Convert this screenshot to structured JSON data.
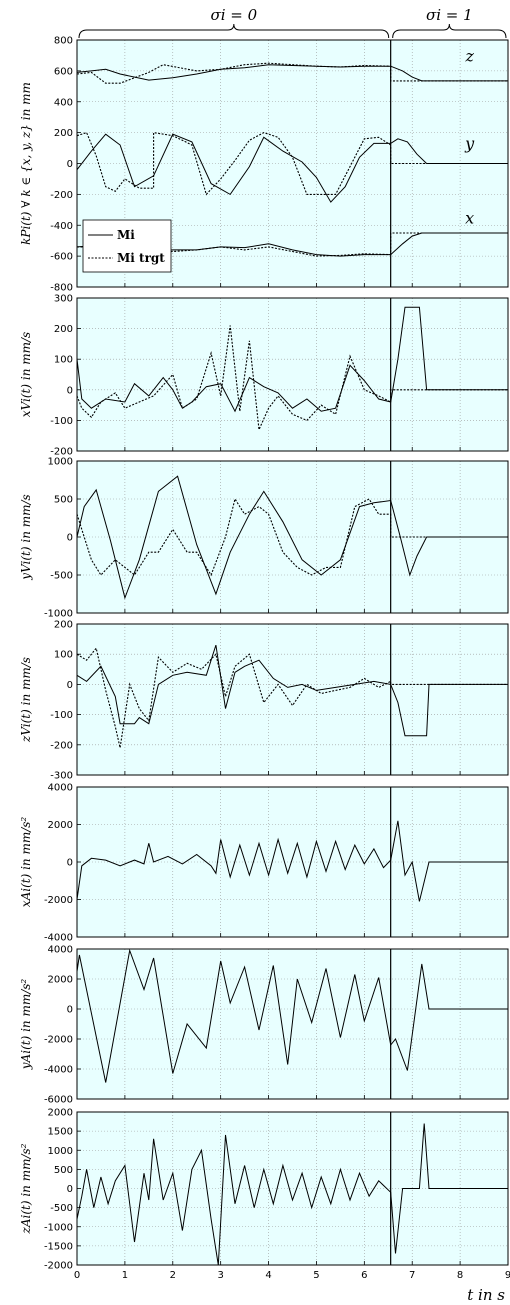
{
  "header": {
    "left_label": "σi = 0",
    "right_label": "σi = 1"
  },
  "xaxis": {
    "label": "t  in s",
    "ticks": [
      "0",
      "1",
      "2",
      "3",
      "4",
      "5",
      "6",
      "7",
      "8",
      "9"
    ]
  },
  "switch_time": 6.55,
  "colors": {
    "background": "#e8ffff",
    "grid": "#9a9a9a",
    "line": "#000000"
  },
  "chart_data": [
    {
      "type": "line",
      "ylabel": "kPi(t) ∀ k ∈ {x, y, z} in mm",
      "ylim": [
        -800,
        800
      ],
      "yticks": [
        -800,
        -600,
        -400,
        -200,
        0,
        200,
        400,
        600,
        800
      ],
      "xlim": [
        0,
        9
      ],
      "annotations": [
        {
          "text": "z",
          "x": 8.2,
          "y": 660
        },
        {
          "text": "y",
          "x": 8.2,
          "y": 95
        },
        {
          "text": "x",
          "x": 8.2,
          "y": -390
        }
      ],
      "legend": {
        "placement": "left",
        "entries": [
          {
            "label": "Mi",
            "style": "solid"
          },
          {
            "label": "Mi trgt",
            "style": "dotted"
          }
        ]
      },
      "series": [
        {
          "name": "z Mi",
          "style": "solid",
          "x": [
            0,
            0.3,
            0.6,
            0.9,
            1.5,
            2.0,
            2.5,
            3.0,
            3.5,
            4.0,
            4.5,
            5.0,
            5.5,
            6.0,
            6.55,
            6.8,
            7.0,
            7.2,
            9
          ],
          "y": [
            590,
            600,
            610,
            580,
            540,
            555,
            580,
            610,
            620,
            640,
            635,
            630,
            625,
            630,
            630,
            600,
            560,
            535,
            535
          ]
        },
        {
          "name": "z Mi trgt",
          "style": "dotted",
          "x": [
            0,
            0.3,
            0.6,
            0.9,
            1.5,
            1.8,
            2.5,
            3.0,
            3.5,
            4.0,
            4.5,
            5.0,
            5.5,
            6.0,
            6.55,
            6.55,
            9
          ],
          "y": [
            580,
            590,
            520,
            520,
            590,
            640,
            600,
            610,
            640,
            650,
            640,
            630,
            625,
            635,
            630,
            535,
            535
          ]
        },
        {
          "name": "y Mi",
          "style": "solid",
          "x": [
            0,
            0.3,
            0.6,
            0.9,
            1.2,
            1.6,
            2.0,
            2.4,
            2.8,
            3.2,
            3.6,
            3.9,
            4.3,
            4.7,
            5.0,
            5.3,
            5.6,
            5.9,
            6.2,
            6.55,
            6.7,
            6.9,
            7.1,
            7.3,
            9
          ],
          "y": [
            -40,
            80,
            190,
            120,
            -150,
            -80,
            190,
            140,
            -130,
            -200,
            -20,
            170,
            80,
            10,
            -90,
            -250,
            -150,
            40,
            130,
            130,
            160,
            140,
            60,
            0,
            0
          ]
        },
        {
          "name": "y Mi trgt",
          "style": "dotted",
          "x": [
            0,
            0.2,
            0.4,
            0.6,
            0.8,
            1.0,
            1.3,
            1.6,
            1.6,
            2.0,
            2.2,
            2.4,
            2.7,
            2.7,
            3.0,
            3.3,
            3.6,
            3.9,
            4.2,
            4.5,
            4.8,
            5.1,
            5.4,
            5.7,
            6.0,
            6.3,
            6.55,
            6.55,
            9
          ],
          "y": [
            180,
            200,
            50,
            -150,
            -180,
            -100,
            -160,
            -160,
            200,
            180,
            150,
            120,
            -200,
            -200,
            -100,
            20,
            150,
            200,
            170,
            40,
            -200,
            -200,
            -200,
            -20,
            160,
            170,
            120,
            0,
            0
          ]
        },
        {
          "name": "x Mi",
          "style": "solid",
          "x": [
            0,
            0.5,
            1.0,
            1.5,
            2.0,
            2.5,
            3.0,
            3.5,
            4.0,
            4.5,
            5.0,
            5.5,
            6.0,
            6.55,
            6.8,
            7.0,
            7.2,
            9
          ],
          "y": [
            -540,
            -530,
            -560,
            -575,
            -560,
            -560,
            -540,
            -545,
            -520,
            -560,
            -590,
            -600,
            -590,
            -590,
            -520,
            -470,
            -450,
            -450
          ]
        },
        {
          "name": "x Mi trgt",
          "style": "dotted",
          "x": [
            0,
            0.5,
            1.0,
            1.5,
            2.0,
            2.5,
            3.0,
            3.5,
            4.0,
            4.5,
            5.0,
            5.5,
            6.0,
            6.55,
            6.55,
            9
          ],
          "y": [
            -540,
            -540,
            -580,
            -580,
            -570,
            -560,
            -540,
            -560,
            -540,
            -570,
            -600,
            -595,
            -585,
            -590,
            -450,
            -450
          ]
        }
      ]
    },
    {
      "type": "line",
      "ylabel": "xVi(t) in mm/s",
      "ylim": [
        -200,
        300
      ],
      "yticks": [
        -200,
        -100,
        0,
        100,
        200,
        300
      ],
      "xlim": [
        0,
        9
      ],
      "series": [
        {
          "name": "Mi",
          "style": "solid",
          "x": [
            0,
            0.1,
            0.3,
            0.6,
            1.0,
            1.2,
            1.5,
            1.8,
            2.0,
            2.2,
            2.4,
            2.7,
            3.0,
            3.3,
            3.6,
            3.9,
            4.2,
            4.5,
            4.8,
            5.1,
            5.4,
            5.7,
            6.0,
            6.3,
            6.55,
            6.7,
            6.85,
            7.0,
            7.15,
            7.3,
            9
          ],
          "y": [
            100,
            -30,
            -60,
            -30,
            -40,
            20,
            -20,
            40,
            0,
            -60,
            -40,
            10,
            20,
            -70,
            40,
            10,
            -10,
            -60,
            -30,
            -70,
            -60,
            80,
            30,
            -30,
            -40,
            100,
            270,
            270,
            270,
            0,
            0
          ]
        },
        {
          "name": "Mi trgt",
          "style": "dotted",
          "x": [
            0,
            0.1,
            0.3,
            0.5,
            0.8,
            1.0,
            1.3,
            1.6,
            2.0,
            2.2,
            2.5,
            2.8,
            3.0,
            3.2,
            3.4,
            3.6,
            3.8,
            4.0,
            4.2,
            4.5,
            4.8,
            5.1,
            5.4,
            5.7,
            6.0,
            6.3,
            6.55,
            6.55,
            9
          ],
          "y": [
            -20,
            -60,
            -90,
            -40,
            -10,
            -60,
            -40,
            -20,
            50,
            -60,
            -30,
            120,
            -20,
            210,
            -70,
            160,
            -130,
            -60,
            -20,
            -80,
            -100,
            -50,
            -80,
            110,
            0,
            -20,
            -40,
            0,
            0
          ]
        }
      ]
    },
    {
      "type": "line",
      "ylabel": "yVi(t) in mm/s",
      "ylim": [
        -1000,
        1000
      ],
      "yticks": [
        -1000,
        -500,
        0,
        500,
        1000
      ],
      "xlim": [
        0,
        9
      ],
      "series": [
        {
          "name": "Mi",
          "style": "solid",
          "x": [
            0,
            0.15,
            0.4,
            0.7,
            1.0,
            1.3,
            1.7,
            2.1,
            2.5,
            2.9,
            3.2,
            3.6,
            3.9,
            4.3,
            4.7,
            5.1,
            5.5,
            5.9,
            6.2,
            6.55,
            6.75,
            6.95,
            7.1,
            7.3,
            9
          ],
          "y": [
            0,
            400,
            620,
            -50,
            -800,
            -300,
            600,
            800,
            -100,
            -750,
            -200,
            300,
            600,
            200,
            -300,
            -500,
            -300,
            400,
            450,
            480,
            0,
            -500,
            -250,
            0,
            0
          ]
        },
        {
          "name": "Mi trgt",
          "style": "dotted",
          "x": [
            0,
            0.3,
            0.5,
            0.8,
            1.2,
            1.5,
            1.7,
            2.0,
            2.3,
            2.5,
            2.8,
            3.1,
            3.3,
            3.5,
            3.8,
            4.0,
            4.3,
            4.6,
            4.9,
            5.2,
            5.5,
            5.8,
            6.1,
            6.3,
            6.55,
            6.55,
            9
          ],
          "y": [
            300,
            -300,
            -500,
            -300,
            -500,
            -200,
            -200,
            100,
            -200,
            -200,
            -500,
            0,
            500,
            300,
            400,
            300,
            -200,
            -400,
            -500,
            -400,
            -400,
            400,
            500,
            300,
            300,
            0,
            0
          ]
        }
      ]
    },
    {
      "type": "line",
      "ylabel": "zVi(t) in mm/s",
      "ylim": [
        -300,
        200
      ],
      "yticks": [
        -300,
        -200,
        -100,
        0,
        100,
        200
      ],
      "xlim": [
        0,
        9
      ],
      "series": [
        {
          "name": "Mi",
          "style": "solid",
          "x": [
            0,
            0.2,
            0.5,
            0.8,
            0.9,
            1.2,
            1.3,
            1.5,
            1.7,
            2.0,
            2.3,
            2.7,
            2.9,
            3.1,
            3.3,
            3.5,
            3.8,
            4.1,
            4.4,
            4.7,
            5.0,
            5.4,
            5.8,
            6.2,
            6.55,
            6.7,
            6.85,
            7.3,
            7.35,
            9
          ],
          "y": [
            30,
            10,
            60,
            -40,
            -130,
            -130,
            -110,
            -130,
            0,
            30,
            40,
            30,
            130,
            -80,
            40,
            60,
            80,
            20,
            -10,
            0,
            -20,
            -10,
            0,
            10,
            0,
            -60,
            -170,
            -170,
            0,
            0
          ]
        },
        {
          "name": "Mi trgt",
          "style": "dotted",
          "x": [
            0,
            0.2,
            0.4,
            0.6,
            0.8,
            0.9,
            1.1,
            1.3,
            1.5,
            1.7,
            2.0,
            2.3,
            2.6,
            2.9,
            3.1,
            3.3,
            3.6,
            3.9,
            4.2,
            4.5,
            4.8,
            5.1,
            5.4,
            5.7,
            6.0,
            6.3,
            6.55,
            6.55,
            9
          ],
          "y": [
            100,
            80,
            120,
            -20,
            -140,
            -210,
            0,
            -80,
            -120,
            90,
            40,
            70,
            50,
            100,
            -40,
            60,
            100,
            -60,
            0,
            -70,
            0,
            -30,
            -20,
            -10,
            20,
            -10,
            10,
            0,
            0
          ]
        }
      ]
    },
    {
      "type": "line",
      "ylabel": "xAi(t) in mm/s²",
      "ylim": [
        -4000,
        4000
      ],
      "yticks": [
        -4000,
        -2000,
        0,
        2000,
        4000
      ],
      "xlim": [
        0,
        9
      ],
      "series": [
        {
          "name": "Mi",
          "style": "solid",
          "x": [
            0,
            0.1,
            0.3,
            0.6,
            0.9,
            1.2,
            1.4,
            1.5,
            1.6,
            1.9,
            2.2,
            2.5,
            2.8,
            2.9,
            3.0,
            3.2,
            3.4,
            3.6,
            3.8,
            4.0,
            4.2,
            4.4,
            4.6,
            4.8,
            5.0,
            5.2,
            5.4,
            5.6,
            5.8,
            6.0,
            6.2,
            6.4,
            6.55,
            6.7,
            6.85,
            7.0,
            7.15,
            7.35,
            9
          ],
          "y": [
            -2000,
            -200,
            200,
            100,
            -200,
            100,
            -100,
            1000,
            0,
            300,
            -100,
            400,
            -200,
            -600,
            1200,
            -800,
            900,
            -700,
            1000,
            -700,
            1200,
            -600,
            1000,
            -800,
            1100,
            -500,
            1100,
            -400,
            900,
            -100,
            700,
            -300,
            100,
            2200,
            -700,
            0,
            -2100,
            0,
            0
          ]
        }
      ]
    },
    {
      "type": "line",
      "ylabel": "yAi(t) in mm/s²",
      "ylim": [
        -6000,
        4000
      ],
      "yticks": [
        -6000,
        -4000,
        -2000,
        0,
        2000,
        4000
      ],
      "xlim": [
        0,
        9
      ],
      "series": [
        {
          "name": "Mi",
          "style": "solid",
          "x": [
            0,
            0.05,
            0.6,
            1.1,
            1.4,
            1.6,
            2.0,
            2.3,
            2.7,
            3.0,
            3.2,
            3.5,
            3.8,
            4.1,
            4.4,
            4.6,
            4.9,
            5.2,
            5.5,
            5.8,
            6.0,
            6.3,
            6.55,
            6.65,
            6.9,
            7.2,
            7.35,
            9
          ],
          "y": [
            2500,
            3600,
            -4900,
            3900,
            1300,
            3400,
            -4300,
            -1000,
            -2600,
            3200,
            400,
            2800,
            -1400,
            2900,
            -3700,
            2000,
            -900,
            2700,
            -1900,
            2300,
            -800,
            2100,
            -2400,
            -2000,
            -4100,
            3000,
            0,
            0
          ]
        }
      ]
    },
    {
      "type": "line",
      "ylabel": "zAi(t) in mm/s²",
      "ylim": [
        -2000,
        2000
      ],
      "yticks": [
        -2000,
        -1500,
        -1000,
        -500,
        0,
        500,
        1000,
        1500,
        2000
      ],
      "xlim": [
        0,
        9
      ],
      "series": [
        {
          "name": "Mi",
          "style": "solid",
          "x": [
            0,
            0.1,
            0.2,
            0.35,
            0.5,
            0.65,
            0.8,
            1.0,
            1.2,
            1.4,
            1.5,
            1.6,
            1.8,
            2.0,
            2.2,
            2.4,
            2.6,
            2.8,
            2.95,
            3.1,
            3.3,
            3.5,
            3.7,
            3.9,
            4.1,
            4.3,
            4.5,
            4.7,
            4.9,
            5.1,
            5.3,
            5.5,
            5.7,
            5.9,
            6.1,
            6.3,
            6.55,
            6.65,
            6.8,
            7.0,
            7.15,
            7.25,
            7.35,
            9
          ],
          "y": [
            -800,
            -200,
            500,
            -500,
            300,
            -400,
            200,
            600,
            -1400,
            400,
            -300,
            1300,
            -300,
            400,
            -1100,
            500,
            1000,
            -800,
            -2000,
            1400,
            -400,
            600,
            -500,
            500,
            -400,
            600,
            -300,
            400,
            -500,
            300,
            -400,
            500,
            -300,
            400,
            -200,
            200,
            -100,
            -1700,
            0,
            0,
            0,
            1700,
            0,
            0
          ]
        }
      ]
    }
  ]
}
